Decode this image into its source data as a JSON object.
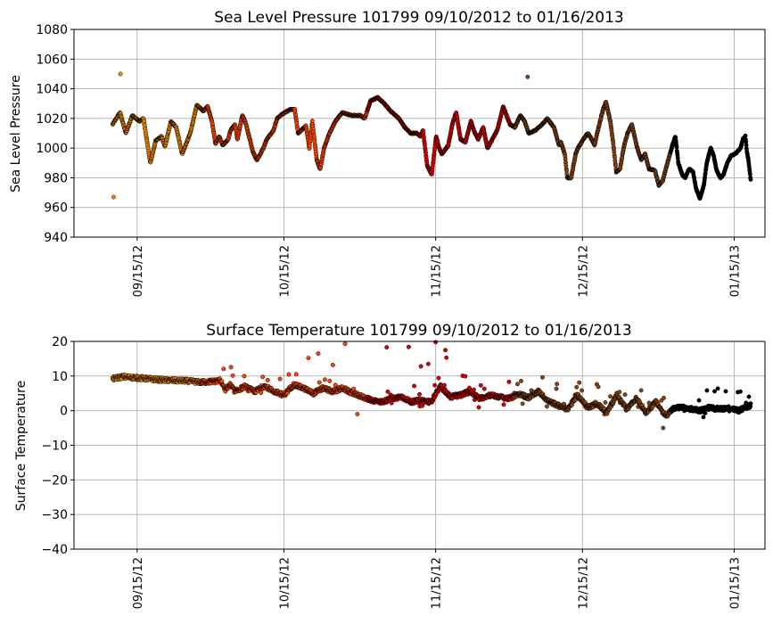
{
  "chart_data": [
    {
      "type": "scatter",
      "title": "Sea Level Pressure 101799  09/10/2012 to 01/16/2013",
      "xlabel": "",
      "ylabel": "Sea Level Pressure",
      "ylim": [
        940,
        1080
      ],
      "yticks": [
        940,
        960,
        980,
        1000,
        1020,
        1040,
        1060,
        1080
      ],
      "x_range_days": [
        "09/10/2012",
        "01/16/2013"
      ],
      "xticks": [
        {
          "day": 5,
          "label": "09/15/12"
        },
        {
          "day": 35,
          "label": "10/15/12"
        },
        {
          "day": 66,
          "label": "11/15/12"
        },
        {
          "day": 96,
          "label": "12/15/12"
        },
        {
          "day": 127,
          "label": "01/15/13"
        }
      ],
      "grid": true,
      "color_segments": [
        {
          "from_day": 0,
          "to_day": 18,
          "color": "#ff8c00"
        },
        {
          "from_day": 18,
          "to_day": 52,
          "color": "#ff4500"
        },
        {
          "from_day": 52,
          "to_day": 82,
          "color": "#e00000"
        },
        {
          "from_day": 82,
          "to_day": 114,
          "color": "#8b4513"
        },
        {
          "from_day": 114,
          "to_day": 129,
          "color": "#000000"
        }
      ],
      "keypoints": [
        [
          0,
          1016
        ],
        [
          1.5,
          1024
        ],
        [
          2.7,
          1010
        ],
        [
          4,
          1022
        ],
        [
          5.5,
          1018
        ],
        [
          6.3,
          1020
        ],
        [
          7.7,
          990
        ],
        [
          8.8,
          1005
        ],
        [
          10,
          1008
        ],
        [
          10.7,
          1001
        ],
        [
          11.9,
          1018
        ],
        [
          13,
          1014
        ],
        [
          14.2,
          996
        ],
        [
          15.4,
          1006
        ],
        [
          16,
          1012
        ],
        [
          17.2,
          1029
        ],
        [
          18.5,
          1025
        ],
        [
          19.4,
          1028
        ],
        [
          20.3,
          1018
        ],
        [
          21,
          1003
        ],
        [
          21.8,
          1008
        ],
        [
          22.5,
          1002
        ],
        [
          23.6,
          1006
        ],
        [
          24.1,
          1012
        ],
        [
          25,
          1016
        ],
        [
          25.5,
          1006
        ],
        [
          26.5,
          1022
        ],
        [
          27.1,
          1018
        ],
        [
          28.7,
          997
        ],
        [
          29.5,
          992
        ],
        [
          30.8,
          1000
        ],
        [
          31.5,
          1006
        ],
        [
          32.9,
          1012
        ],
        [
          33.6,
          1020
        ],
        [
          34.7,
          1023
        ],
        [
          36.3,
          1026
        ],
        [
          37.2,
          1026
        ],
        [
          37.9,
          1010
        ],
        [
          39.5,
          1015
        ],
        [
          40.2,
          1000
        ],
        [
          40.8,
          1018
        ],
        [
          41.7,
          992
        ],
        [
          42.4,
          986
        ],
        [
          43.2,
          1000
        ],
        [
          44.3,
          1010
        ],
        [
          45.5,
          1018
        ],
        [
          46.9,
          1024
        ],
        [
          48.8,
          1022
        ],
        [
          50.6,
          1022
        ],
        [
          51.5,
          1020
        ],
        [
          52.7,
          1032
        ],
        [
          54.2,
          1034
        ],
        [
          55.5,
          1030
        ],
        [
          56.8,
          1025
        ],
        [
          58.5,
          1020
        ],
        [
          59.7,
          1014
        ],
        [
          60.9,
          1010
        ],
        [
          62.2,
          1010
        ],
        [
          62.9,
          1008
        ],
        [
          63.4,
          1012
        ],
        [
          64.3,
          988
        ],
        [
          65.2,
          982
        ],
        [
          66.1,
          1008
        ],
        [
          66.7,
          1000
        ],
        [
          67.3,
          996
        ],
        [
          68.6,
          1002
        ],
        [
          69.4,
          1016
        ],
        [
          70.2,
          1024
        ],
        [
          71.1,
          1006
        ],
        [
          72.1,
          1004
        ],
        [
          73.2,
          1018
        ],
        [
          73.8,
          1012
        ],
        [
          74.7,
          1006
        ],
        [
          75.7,
          1014
        ],
        [
          76.6,
          1000
        ],
        [
          77.6,
          1006
        ],
        [
          78.6,
          1012
        ],
        [
          79.8,
          1028
        ],
        [
          81.2,
          1016
        ],
        [
          82.2,
          1014
        ],
        [
          83.3,
          1022
        ],
        [
          84.2,
          1018
        ],
        [
          85,
          1010
        ],
        [
          86.4,
          1012
        ],
        [
          87.8,
          1016
        ],
        [
          88.8,
          1020
        ],
        [
          90.2,
          1014
        ],
        [
          91.2,
          1002
        ],
        [
          91.6,
          1004
        ],
        [
          92.4,
          996
        ],
        [
          92.9,
          980
        ],
        [
          93.7,
          980
        ],
        [
          94.6,
          996
        ],
        [
          95.1,
          1000
        ],
        [
          96.2,
          1006
        ],
        [
          97.1,
          1010
        ],
        [
          97.9,
          1006
        ],
        [
          98.5,
          1002
        ],
        [
          99,
          1010
        ],
        [
          99.6,
          1018
        ],
        [
          100.2,
          1026
        ],
        [
          100.8,
          1031
        ],
        [
          101.7,
          1018
        ],
        [
          102.3,
          1003
        ],
        [
          102.9,
          984
        ],
        [
          103.7,
          986
        ],
        [
          104.4,
          1000
        ],
        [
          105.2,
          1010
        ],
        [
          106.1,
          1016
        ],
        [
          107.2,
          1000
        ],
        [
          108,
          992
        ],
        [
          108.8,
          996
        ],
        [
          109.6,
          986
        ],
        [
          110.8,
          985
        ],
        [
          111.6,
          975
        ],
        [
          112.4,
          978
        ],
        [
          113.2,
          988
        ],
        [
          113.8,
          995
        ],
        [
          114.4,
          1002
        ],
        [
          115,
          1008
        ],
        [
          115.6,
          990
        ],
        [
          116.4,
          982
        ],
        [
          117,
          980
        ],
        [
          117.8,
          986
        ],
        [
          118.6,
          984
        ],
        [
          119.2,
          973
        ],
        [
          120,
          966
        ],
        [
          120.8,
          975
        ],
        [
          121.4,
          990
        ],
        [
          122.2,
          1000
        ],
        [
          122.8,
          995
        ],
        [
          123.4,
          985
        ],
        [
          124.2,
          980
        ],
        [
          124.8,
          982
        ],
        [
          125.6,
          990
        ],
        [
          126.4,
          995
        ],
        [
          127.2,
          996
        ],
        [
          128.3,
          1000
        ],
        [
          128.8,
          1006
        ],
        [
          129.3,
          1008
        ],
        [
          129.6,
          998
        ],
        [
          130,
          990
        ],
        [
          130.4,
          978
        ]
      ],
      "outliers": [
        {
          "day": 0.2,
          "value": 967
        },
        {
          "day": 1.6,
          "value": 1050
        },
        {
          "day": 84.8,
          "value": 1048
        }
      ]
    },
    {
      "type": "scatter",
      "title": "Surface Temperature 101799  09/10/2012 to 01/16/2013",
      "xlabel": "",
      "ylabel": "Surface Temperature",
      "ylim": [
        -40,
        20
      ],
      "yticks": [
        -40,
        -30,
        -20,
        -10,
        0,
        10,
        20
      ],
      "x_range_days": [
        "09/10/2012",
        "01/16/2013"
      ],
      "xticks": [
        {
          "day": 5,
          "label": "09/15/12"
        },
        {
          "day": 35,
          "label": "10/15/12"
        },
        {
          "day": 66,
          "label": "11/15/12"
        },
        {
          "day": 96,
          "label": "12/15/12"
        },
        {
          "day": 127,
          "label": "01/15/13"
        }
      ],
      "grid": true,
      "color_segments": [
        {
          "from_day": 0,
          "to_day": 18,
          "color": "#ff8c00"
        },
        {
          "from_day": 18,
          "to_day": 52,
          "color": "#ff4500"
        },
        {
          "from_day": 52,
          "to_day": 82,
          "color": "#e00000"
        },
        {
          "from_day": 82,
          "to_day": 114,
          "color": "#8b4513"
        },
        {
          "from_day": 114,
          "to_day": 129,
          "color": "#000000"
        }
      ],
      "keypoints": [
        [
          0,
          9.2
        ],
        [
          2,
          9.8
        ],
        [
          5,
          9.5
        ],
        [
          8,
          9.1
        ],
        [
          11,
          8.8
        ],
        [
          15,
          8.6
        ],
        [
          18,
          8.2
        ],
        [
          21,
          8.5
        ],
        [
          22,
          8.8
        ],
        [
          23,
          6
        ],
        [
          24,
          7.5
        ],
        [
          25,
          5.5
        ],
        [
          27,
          7
        ],
        [
          29,
          5.5
        ],
        [
          31,
          7.2
        ],
        [
          33,
          5.5
        ],
        [
          35,
          4.5
        ],
        [
          37,
          7.5
        ],
        [
          39,
          6.5
        ],
        [
          41,
          5
        ],
        [
          43,
          6.5
        ],
        [
          45,
          5.5
        ],
        [
          47,
          6.5
        ],
        [
          49,
          5
        ],
        [
          51,
          4
        ],
        [
          53,
          3
        ],
        [
          55,
          2.5
        ],
        [
          57,
          3.5
        ],
        [
          59,
          4
        ],
        [
          61,
          2.5
        ],
        [
          63,
          3
        ],
        [
          65,
          2.5
        ],
        [
          67,
          7
        ],
        [
          69,
          4
        ],
        [
          71,
          4.5
        ],
        [
          73,
          5.5
        ],
        [
          75,
          3.5
        ],
        [
          77,
          4.5
        ],
        [
          79,
          4
        ],
        [
          81,
          3.5
        ],
        [
          83,
          4.8
        ],
        [
          85,
          3.8
        ],
        [
          87,
          5.5
        ],
        [
          89,
          2.8
        ],
        [
          91,
          1.5
        ],
        [
          93,
          0.5
        ],
        [
          95,
          4.5
        ],
        [
          97,
          1
        ],
        [
          99,
          2
        ],
        [
          101,
          -0.5
        ],
        [
          103,
          4.5
        ],
        [
          105,
          0.5
        ],
        [
          107,
          3.5
        ],
        [
          109,
          -0.5
        ],
        [
          111,
          2.5
        ],
        [
          113,
          -1.5
        ],
        [
          114.5,
          0.5
        ],
        [
          116,
          1
        ],
        [
          118,
          0.5
        ],
        [
          120,
          0
        ],
        [
          122,
          1
        ],
        [
          124,
          0.5
        ],
        [
          126,
          0.8
        ],
        [
          128,
          0
        ],
        [
          129.5,
          1
        ],
        [
          130.4,
          1.5
        ]
      ],
      "outliers": [
        {
          "day": 40,
          "value": 15.2
        },
        {
          "day": 42,
          "value": 16.5
        },
        {
          "day": 45,
          "value": 13.2
        },
        {
          "day": 47.5,
          "value": 19.3
        },
        {
          "day": 56,
          "value": 18.3
        },
        {
          "day": 60.5,
          "value": 18.4
        },
        {
          "day": 66,
          "value": 19.8
        },
        {
          "day": 68,
          "value": 17.5
        },
        {
          "day": 68.2,
          "value": 15.3
        },
        {
          "day": 64.5,
          "value": 13.5
        },
        {
          "day": 63,
          "value": 12.8
        },
        {
          "day": 50,
          "value": -1
        },
        {
          "day": 112.5,
          "value": -5
        }
      ]
    }
  ]
}
